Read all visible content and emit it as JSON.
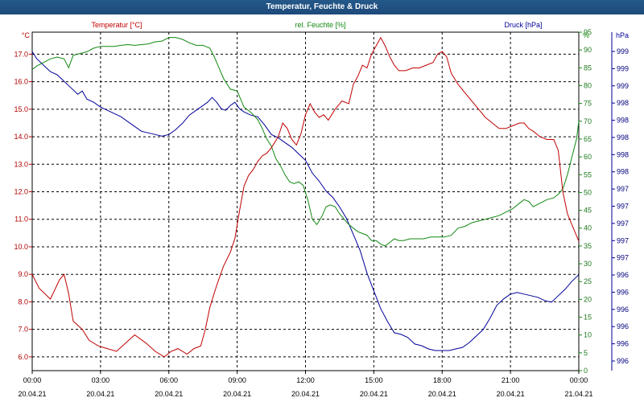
{
  "title": "Temperatur, Feuchte & Druck",
  "colors": {
    "temperature": "#c00000",
    "humidity": "#118811",
    "pressure": "#000099",
    "grid": "#000000",
    "titlebar": "#245889"
  },
  "chart_data": {
    "type": "line",
    "legend": {
      "temperature": "Temperatur [°C]",
      "humidity": "rel. Feuchte [%]",
      "pressure": "Druck [hPa]"
    },
    "axes": {
      "temperature": {
        "unit": "°C",
        "ylim": [
          5.5,
          17.8
        ],
        "ticks": [
          "6.0",
          "7.0",
          "8.0",
          "9.0",
          "10.0",
          "11.0",
          "12.0",
          "13.0",
          "14.0",
          "15.0",
          "16.0",
          "17.0"
        ]
      },
      "humidity": {
        "unit": "%",
        "ylim": [
          0,
          95
        ],
        "ticks": [
          "0",
          "5",
          "10",
          "15",
          "20",
          "25",
          "30",
          "35",
          "40",
          "45",
          "50",
          "55",
          "60",
          "65",
          "70",
          "75",
          "80",
          "85",
          "90",
          "95"
        ]
      },
      "pressure": {
        "unit": "hPa",
        "ticks": [
          "996",
          "996",
          "996",
          "996",
          "996",
          "996",
          "997",
          "997",
          "997",
          "997",
          "997",
          "998",
          "998",
          "998",
          "998",
          "998",
          "999",
          "999",
          "999"
        ]
      }
    },
    "x_ticks": [
      {
        "time": "00:00",
        "date": "20.04.21"
      },
      {
        "time": "03:00",
        "date": "20.04.21"
      },
      {
        "time": "06:00",
        "date": "20.04.21"
      },
      {
        "time": "09:00",
        "date": "20.04.21"
      },
      {
        "time": "12:00",
        "date": "20.04.21"
      },
      {
        "time": "15:00",
        "date": "20.04.21"
      },
      {
        "time": "18:00",
        "date": "20.04.21"
      },
      {
        "time": "21:00",
        "date": "20.04.21"
      },
      {
        "time": "00:00",
        "date": "21.04.21"
      }
    ],
    "x_range_hours": [
      0,
      24
    ],
    "grid": true,
    "series": [
      {
        "name": "Temperatur [°C]",
        "axis": "temperature",
        "points": [
          [
            0,
            9.0
          ],
          [
            0.3,
            8.5
          ],
          [
            0.8,
            8.1
          ],
          [
            1.2,
            8.8
          ],
          [
            1.4,
            9.0
          ],
          [
            1.6,
            8.3
          ],
          [
            1.8,
            7.3
          ],
          [
            2.2,
            7.0
          ],
          [
            2.5,
            6.6
          ],
          [
            2.9,
            6.4
          ],
          [
            3.3,
            6.3
          ],
          [
            3.7,
            6.2
          ],
          [
            4.1,
            6.5
          ],
          [
            4.5,
            6.8
          ],
          [
            5.0,
            6.5
          ],
          [
            5.4,
            6.2
          ],
          [
            5.8,
            6.0
          ],
          [
            6.1,
            6.2
          ],
          [
            6.4,
            6.3
          ],
          [
            6.8,
            6.1
          ],
          [
            7.1,
            6.3
          ],
          [
            7.4,
            6.4
          ],
          [
            7.6,
            7.0
          ],
          [
            7.8,
            7.8
          ],
          [
            8.1,
            8.6
          ],
          [
            8.4,
            9.3
          ],
          [
            8.7,
            9.8
          ],
          [
            8.9,
            10.3
          ],
          [
            9.1,
            11.3
          ],
          [
            9.3,
            12.2
          ],
          [
            9.5,
            12.6
          ],
          [
            9.7,
            12.8
          ],
          [
            9.9,
            13.1
          ],
          [
            10.1,
            13.3
          ],
          [
            10.3,
            13.4
          ],
          [
            10.5,
            13.6
          ],
          [
            10.8,
            14.0
          ],
          [
            11.0,
            14.5
          ],
          [
            11.2,
            14.3
          ],
          [
            11.4,
            13.9
          ],
          [
            11.6,
            13.7
          ],
          [
            11.8,
            14.1
          ],
          [
            12.0,
            14.8
          ],
          [
            12.2,
            15.2
          ],
          [
            12.4,
            14.9
          ],
          [
            12.6,
            14.7
          ],
          [
            12.8,
            14.8
          ],
          [
            13.0,
            14.6
          ],
          [
            13.3,
            15.0
          ],
          [
            13.6,
            15.3
          ],
          [
            13.9,
            15.2
          ],
          [
            14.1,
            15.9
          ],
          [
            14.3,
            16.2
          ],
          [
            14.5,
            16.6
          ],
          [
            14.7,
            16.5
          ],
          [
            14.9,
            17.0
          ],
          [
            15.1,
            17.3
          ],
          [
            15.3,
            17.6
          ],
          [
            15.5,
            17.3
          ],
          [
            15.7,
            16.9
          ],
          [
            15.9,
            16.6
          ],
          [
            16.1,
            16.4
          ],
          [
            16.4,
            16.4
          ],
          [
            16.7,
            16.5
          ],
          [
            17.0,
            16.5
          ],
          [
            17.3,
            16.6
          ],
          [
            17.6,
            16.7
          ],
          [
            17.8,
            17.0
          ],
          [
            18.0,
            17.1
          ],
          [
            18.2,
            16.9
          ],
          [
            18.4,
            16.3
          ],
          [
            18.7,
            15.9
          ],
          [
            19.0,
            15.6
          ],
          [
            19.3,
            15.3
          ],
          [
            19.6,
            15.0
          ],
          [
            19.9,
            14.7
          ],
          [
            20.2,
            14.5
          ],
          [
            20.5,
            14.3
          ],
          [
            20.8,
            14.3
          ],
          [
            21.1,
            14.4
          ],
          [
            21.4,
            14.5
          ],
          [
            21.6,
            14.5
          ],
          [
            21.8,
            14.3
          ],
          [
            22.0,
            14.2
          ],
          [
            22.3,
            14.0
          ],
          [
            22.6,
            13.9
          ],
          [
            22.9,
            13.9
          ],
          [
            23.1,
            13.5
          ],
          [
            23.3,
            12.0
          ],
          [
            23.5,
            11.2
          ],
          [
            23.7,
            10.8
          ],
          [
            23.9,
            10.4
          ],
          [
            24.0,
            10.2
          ]
        ]
      },
      {
        "name": "rel. Feuchte [%]",
        "axis": "humidity",
        "points": [
          [
            0,
            84.5
          ],
          [
            0.2,
            85.5
          ],
          [
            0.5,
            86.5
          ],
          [
            0.8,
            87.5
          ],
          [
            1.1,
            88
          ],
          [
            1.4,
            87.5
          ],
          [
            1.6,
            85
          ],
          [
            1.8,
            88.5
          ],
          [
            2.1,
            89
          ],
          [
            2.4,
            89.5
          ],
          [
            2.7,
            90.5
          ],
          [
            3.0,
            91
          ],
          [
            3.3,
            91
          ],
          [
            3.6,
            91
          ],
          [
            3.9,
            91.3
          ],
          [
            4.2,
            91.5
          ],
          [
            4.5,
            91.3
          ],
          [
            4.8,
            91.5
          ],
          [
            5.1,
            91.7
          ],
          [
            5.4,
            92.3
          ],
          [
            5.7,
            92.5
          ],
          [
            6.0,
            93.5
          ],
          [
            6.3,
            93.5
          ],
          [
            6.6,
            93
          ],
          [
            6.9,
            92
          ],
          [
            7.2,
            91.3
          ],
          [
            7.5,
            91.3
          ],
          [
            7.8,
            90.5
          ],
          [
            8.0,
            88
          ],
          [
            8.2,
            85
          ],
          [
            8.4,
            82
          ],
          [
            8.7,
            79
          ],
          [
            9.0,
            78.5
          ],
          [
            9.3,
            74
          ],
          [
            9.6,
            72.5
          ],
          [
            9.9,
            70.5
          ],
          [
            10.1,
            68
          ],
          [
            10.3,
            65
          ],
          [
            10.5,
            63
          ],
          [
            10.7,
            59.5
          ],
          [
            10.9,
            57.5
          ],
          [
            11.1,
            55
          ],
          [
            11.3,
            53
          ],
          [
            11.5,
            52.5
          ],
          [
            11.7,
            53
          ],
          [
            11.9,
            52
          ],
          [
            12.1,
            48
          ],
          [
            12.3,
            42.5
          ],
          [
            12.5,
            41
          ],
          [
            12.7,
            43
          ],
          [
            12.9,
            46
          ],
          [
            13.1,
            46.5
          ],
          [
            13.3,
            46
          ],
          [
            13.5,
            44
          ],
          [
            13.7,
            42.5
          ],
          [
            13.9,
            41
          ],
          [
            14.1,
            40
          ],
          [
            14.3,
            39
          ],
          [
            14.5,
            38.5
          ],
          [
            14.7,
            38
          ],
          [
            14.9,
            36.5
          ],
          [
            15.1,
            36.5
          ],
          [
            15.3,
            35.5
          ],
          [
            15.5,
            35
          ],
          [
            15.7,
            36
          ],
          [
            15.9,
            37
          ],
          [
            16.1,
            36.5
          ],
          [
            16.3,
            36.5
          ],
          [
            16.6,
            37
          ],
          [
            16.9,
            37
          ],
          [
            17.2,
            37
          ],
          [
            17.5,
            37.5
          ],
          [
            17.8,
            37.5
          ],
          [
            18.1,
            37.5
          ],
          [
            18.4,
            38
          ],
          [
            18.7,
            40
          ],
          [
            19.0,
            40.5
          ],
          [
            19.3,
            41.5
          ],
          [
            19.6,
            42
          ],
          [
            19.9,
            42.5
          ],
          [
            20.2,
            43
          ],
          [
            20.5,
            43.5
          ],
          [
            20.8,
            44.5
          ],
          [
            21.1,
            45.5
          ],
          [
            21.4,
            47
          ],
          [
            21.6,
            48
          ],
          [
            21.8,
            47.5
          ],
          [
            22.0,
            46
          ],
          [
            22.3,
            47
          ],
          [
            22.6,
            48
          ],
          [
            22.9,
            48.5
          ],
          [
            23.1,
            49.5
          ],
          [
            23.3,
            51
          ],
          [
            23.5,
            55
          ],
          [
            23.7,
            60
          ],
          [
            23.9,
            65
          ],
          [
            24.0,
            70
          ]
        ]
      },
      {
        "name": "Druck [hPa]",
        "axis": "pressure",
        "pressure_rel": [
          [
            0,
            0.957
          ],
          [
            0.2,
            0.935
          ],
          [
            0.5,
            0.915
          ],
          [
            0.8,
            0.895
          ],
          [
            1.1,
            0.885
          ],
          [
            1.4,
            0.865
          ],
          [
            1.7,
            0.845
          ],
          [
            2.0,
            0.825
          ],
          [
            2.2,
            0.835
          ],
          [
            2.4,
            0.81
          ],
          [
            2.7,
            0.8
          ],
          [
            3.0,
            0.785
          ],
          [
            3.3,
            0.775
          ],
          [
            3.6,
            0.765
          ],
          [
            3.9,
            0.755
          ],
          [
            4.2,
            0.74
          ],
          [
            4.5,
            0.725
          ],
          [
            4.8,
            0.71
          ],
          [
            5.1,
            0.705
          ],
          [
            5.4,
            0.7
          ],
          [
            5.7,
            0.695
          ],
          [
            6.0,
            0.7
          ],
          [
            6.3,
            0.715
          ],
          [
            6.6,
            0.735
          ],
          [
            6.9,
            0.76
          ],
          [
            7.2,
            0.775
          ],
          [
            7.5,
            0.79
          ],
          [
            7.7,
            0.8
          ],
          [
            7.9,
            0.815
          ],
          [
            8.1,
            0.8
          ],
          [
            8.3,
            0.78
          ],
          [
            8.5,
            0.775
          ],
          [
            8.7,
            0.79
          ],
          [
            8.9,
            0.8
          ],
          [
            9.1,
            0.78
          ],
          [
            9.3,
            0.77
          ],
          [
            9.6,
            0.76
          ],
          [
            9.9,
            0.755
          ],
          [
            10.2,
            0.73
          ],
          [
            10.5,
            0.7
          ],
          [
            10.8,
            0.69
          ],
          [
            11.1,
            0.675
          ],
          [
            11.4,
            0.66
          ],
          [
            11.7,
            0.64
          ],
          [
            12.0,
            0.62
          ],
          [
            12.3,
            0.58
          ],
          [
            12.6,
            0.555
          ],
          [
            12.9,
            0.525
          ],
          [
            13.2,
            0.505
          ],
          [
            13.5,
            0.475
          ],
          [
            13.8,
            0.44
          ],
          [
            14.1,
            0.39
          ],
          [
            14.4,
            0.34
          ],
          [
            14.7,
            0.27
          ],
          [
            15.0,
            0.215
          ],
          [
            15.3,
            0.16
          ],
          [
            15.6,
            0.12
          ],
          [
            15.9,
            0.085
          ],
          [
            16.2,
            0.08
          ],
          [
            16.5,
            0.07
          ],
          [
            16.8,
            0.05
          ],
          [
            17.1,
            0.045
          ],
          [
            17.4,
            0.035
          ],
          [
            17.7,
            0.03
          ],
          [
            18.0,
            0.03
          ],
          [
            18.3,
            0.03
          ],
          [
            18.6,
            0.035
          ],
          [
            18.9,
            0.04
          ],
          [
            19.2,
            0.055
          ],
          [
            19.5,
            0.075
          ],
          [
            19.8,
            0.095
          ],
          [
            20.1,
            0.13
          ],
          [
            20.4,
            0.17
          ],
          [
            20.7,
            0.19
          ],
          [
            21.0,
            0.205
          ],
          [
            21.3,
            0.21
          ],
          [
            21.6,
            0.205
          ],
          [
            21.9,
            0.2
          ],
          [
            22.2,
            0.195
          ],
          [
            22.5,
            0.185
          ],
          [
            22.8,
            0.18
          ],
          [
            23.1,
            0.2
          ],
          [
            23.4,
            0.22
          ],
          [
            23.7,
            0.245
          ],
          [
            24.0,
            0.265
          ]
        ]
      }
    ]
  }
}
